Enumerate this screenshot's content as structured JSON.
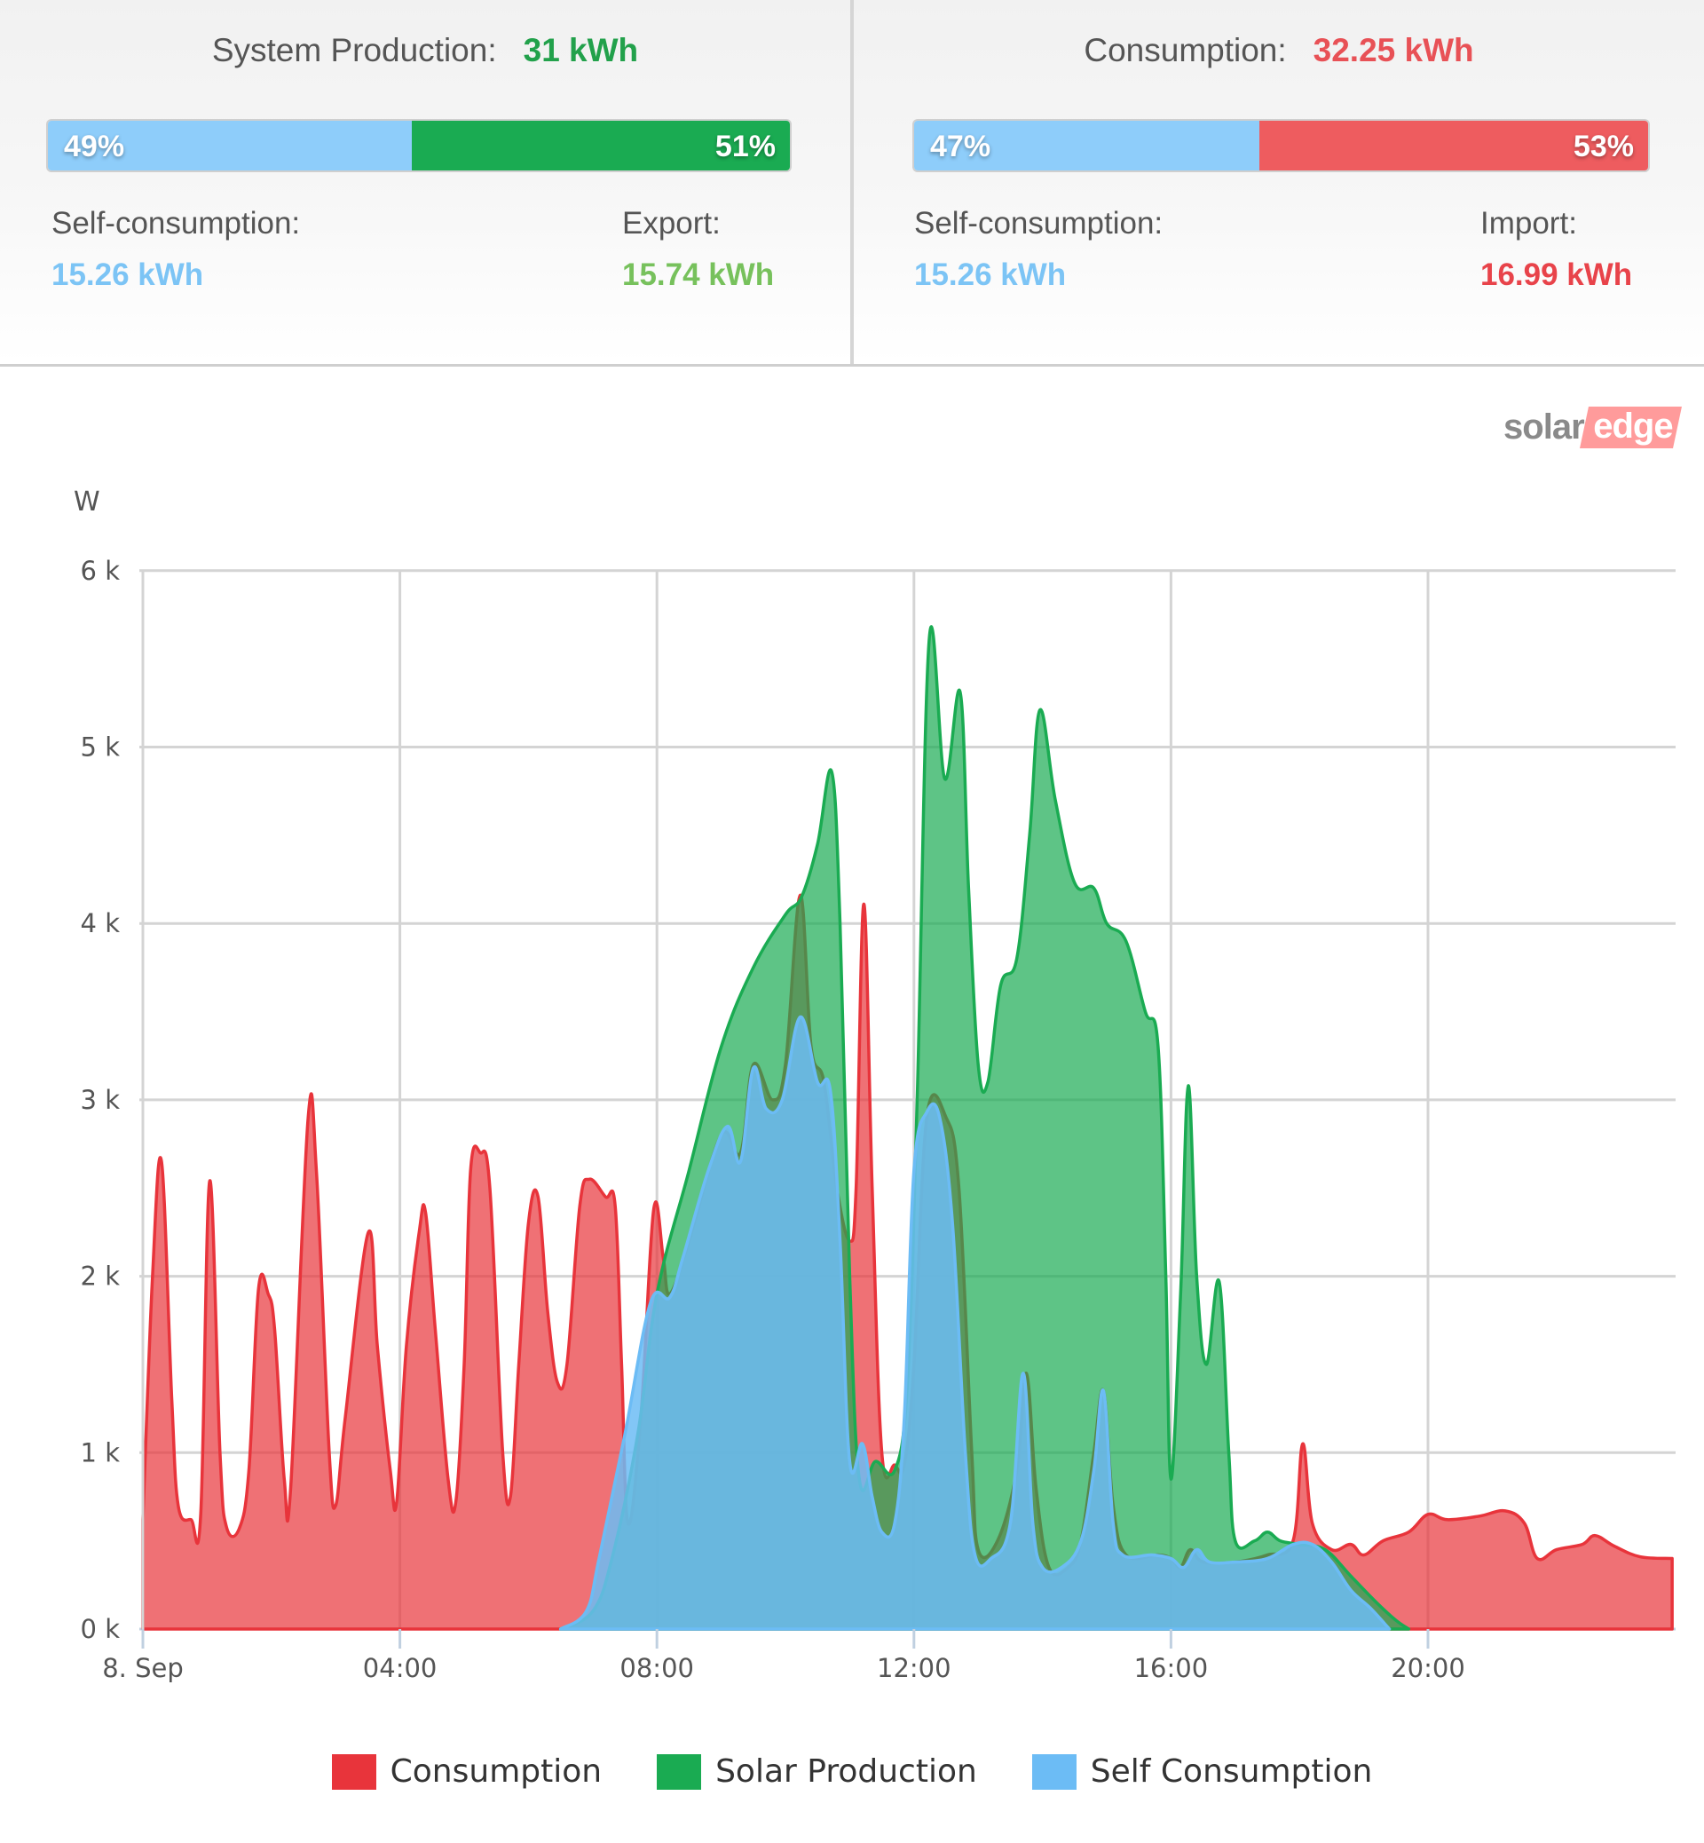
{
  "production": {
    "title": "System Production:",
    "total": "31 kWh",
    "total_color": "#22a14b",
    "bar": {
      "left_pct": 49,
      "left_label": "49%",
      "left_color": "#8ecdfa",
      "right_pct": 51,
      "right_label": "51%",
      "right_color": "#1aab52"
    },
    "left_stat": {
      "label": "Self-consumption:",
      "value": "15.26 kWh",
      "color": "#7cc4f5"
    },
    "right_stat": {
      "label": "Export:",
      "value": "15.74 kWh",
      "color": "#77c15c"
    }
  },
  "consumption": {
    "title": "Consumption:",
    "total": "32.25 kWh",
    "total_color": "#e85156",
    "bar": {
      "left_pct": 47,
      "left_label": "47%",
      "left_color": "#8ecdfa",
      "right_pct": 53,
      "right_label": "53%",
      "right_color": "#ee5c5f"
    },
    "left_stat": {
      "label": "Self-consumption:",
      "value": "15.26 kWh",
      "color": "#7cc4f5"
    },
    "right_stat": {
      "label": "Import:",
      "value": "16.99 kWh",
      "color": "#e8434a"
    }
  },
  "logo": {
    "part1": "solar",
    "part2": "edge"
  },
  "chart_data": {
    "type": "area",
    "title": "",
    "xlabel": "",
    "ylabel": "W",
    "xlim": [
      0,
      23.8
    ],
    "ylim": [
      0,
      6000
    ],
    "x_unit": "hour of day (8 Sep)",
    "y_ticks": [
      "0 k",
      "1 k",
      "2 k",
      "3 k",
      "4 k",
      "5 k",
      "6 k"
    ],
    "x_ticks": [
      {
        "hour": 0,
        "label": "8. Sep"
      },
      {
        "hour": 4,
        "label": "04:00"
      },
      {
        "hour": 8,
        "label": "08:00"
      },
      {
        "hour": 12,
        "label": "12:00"
      },
      {
        "hour": 16,
        "label": "16:00"
      },
      {
        "hour": 20,
        "label": "20:00"
      }
    ],
    "grid": true,
    "legend_position": "bottom",
    "series": [
      {
        "name": "Consumption",
        "color": "#e8343b",
        "fill": "rgba(232,52,59,0.70)",
        "points_kw": [
          [
            0.0,
            0.62
          ],
          [
            0.15,
            2.0
          ],
          [
            0.29,
            2.65
          ],
          [
            0.45,
            1.3
          ],
          [
            0.55,
            0.7
          ],
          [
            0.75,
            0.62
          ],
          [
            0.9,
            0.65
          ],
          [
            1.04,
            2.54
          ],
          [
            1.2,
            1.0
          ],
          [
            1.3,
            0.58
          ],
          [
            1.5,
            0.57
          ],
          [
            1.65,
            0.9
          ],
          [
            1.8,
            1.93
          ],
          [
            1.95,
            1.9
          ],
          [
            2.05,
            1.7
          ],
          [
            2.2,
            0.85
          ],
          [
            2.3,
            0.8
          ],
          [
            2.57,
            2.89
          ],
          [
            2.7,
            2.6
          ],
          [
            2.9,
            1.0
          ],
          [
            3.0,
            0.7
          ],
          [
            3.15,
            1.2
          ],
          [
            3.51,
            2.25
          ],
          [
            3.65,
            1.6
          ],
          [
            3.85,
            0.9
          ],
          [
            3.95,
            0.72
          ],
          [
            4.1,
            1.6
          ],
          [
            4.3,
            2.25
          ],
          [
            4.4,
            2.36
          ],
          [
            4.55,
            1.7
          ],
          [
            4.75,
            0.85
          ],
          [
            4.87,
            0.72
          ],
          [
            5.0,
            1.5
          ],
          [
            5.1,
            2.6
          ],
          [
            5.25,
            2.7
          ],
          [
            5.4,
            2.5
          ],
          [
            5.6,
            1.0
          ],
          [
            5.72,
            0.75
          ],
          [
            5.85,
            1.5
          ],
          [
            6.0,
            2.3
          ],
          [
            6.15,
            2.45
          ],
          [
            6.3,
            1.8
          ],
          [
            6.45,
            1.4
          ],
          [
            6.6,
            1.5
          ],
          [
            6.8,
            2.4
          ],
          [
            6.95,
            2.55
          ],
          [
            7.2,
            2.45
          ],
          [
            7.35,
            2.4
          ],
          [
            7.45,
            1.5
          ],
          [
            7.55,
            0.6
          ],
          [
            7.75,
            1.2
          ],
          [
            7.95,
            2.38
          ],
          [
            8.1,
            2.1
          ],
          [
            8.2,
            1.9
          ],
          [
            8.5,
            2.2
          ],
          [
            9.0,
            2.8
          ],
          [
            9.3,
            2.7
          ],
          [
            9.5,
            3.2
          ],
          [
            9.8,
            3.0
          ],
          [
            10.0,
            3.2
          ],
          [
            10.23,
            4.16
          ],
          [
            10.4,
            3.3
          ],
          [
            10.6,
            3.1
          ],
          [
            10.8,
            2.5
          ],
          [
            11.0,
            2.2
          ],
          [
            11.1,
            2.5
          ],
          [
            11.22,
            4.11
          ],
          [
            11.35,
            2.5
          ],
          [
            11.5,
            1.0
          ],
          [
            11.7,
            0.93
          ],
          [
            11.85,
            0.93
          ],
          [
            12.0,
            1.5
          ],
          [
            12.2,
            2.9
          ],
          [
            12.5,
            2.9
          ],
          [
            12.7,
            2.5
          ],
          [
            12.9,
            1.0
          ],
          [
            13.0,
            0.45
          ],
          [
            13.3,
            0.5
          ],
          [
            13.6,
            0.9
          ],
          [
            13.75,
            1.45
          ],
          [
            13.9,
            0.8
          ],
          [
            14.1,
            0.35
          ],
          [
            14.4,
            0.35
          ],
          [
            14.6,
            0.5
          ],
          [
            14.8,
            1.0
          ],
          [
            14.95,
            1.35
          ],
          [
            15.1,
            0.7
          ],
          [
            15.3,
            0.42
          ],
          [
            15.8,
            0.42
          ],
          [
            16.0,
            0.4
          ],
          [
            16.15,
            0.35
          ],
          [
            16.3,
            0.45
          ],
          [
            16.5,
            0.38
          ],
          [
            17.0,
            0.38
          ],
          [
            17.5,
            0.42
          ],
          [
            17.9,
            0.5
          ],
          [
            18.05,
            1.05
          ],
          [
            18.2,
            0.6
          ],
          [
            18.5,
            0.45
          ],
          [
            18.8,
            0.48
          ],
          [
            19.0,
            0.42
          ],
          [
            19.3,
            0.5
          ],
          [
            19.7,
            0.55
          ],
          [
            20.0,
            0.65
          ],
          [
            20.3,
            0.62
          ],
          [
            20.8,
            0.64
          ],
          [
            21.2,
            0.67
          ],
          [
            21.5,
            0.6
          ],
          [
            21.7,
            0.4
          ],
          [
            22.0,
            0.45
          ],
          [
            22.4,
            0.48
          ],
          [
            22.6,
            0.53
          ],
          [
            22.9,
            0.47
          ],
          [
            23.3,
            0.41
          ],
          [
            23.8,
            0.4
          ]
        ]
      },
      {
        "name": "Solar Production",
        "color": "#1aab52",
        "fill": "rgba(26,171,82,0.70)",
        "points_kw": [
          [
            6.5,
            0
          ],
          [
            7.0,
            0.1
          ],
          [
            7.3,
            0.4
          ],
          [
            7.7,
            1.1
          ],
          [
            8.0,
            1.9
          ],
          [
            8.5,
            2.6
          ],
          [
            9.0,
            3.3
          ],
          [
            9.5,
            3.75
          ],
          [
            10.0,
            4.05
          ],
          [
            10.25,
            4.15
          ],
          [
            10.5,
            4.45
          ],
          [
            10.72,
            4.86
          ],
          [
            10.85,
            4.0
          ],
          [
            11.0,
            2.0
          ],
          [
            11.15,
            0.85
          ],
          [
            11.4,
            0.95
          ],
          [
            11.7,
            0.9
          ],
          [
            11.9,
            1.4
          ],
          [
            12.05,
            3.0
          ],
          [
            12.24,
            5.62
          ],
          [
            12.48,
            4.82
          ],
          [
            12.72,
            5.31
          ],
          [
            12.85,
            4.2
          ],
          [
            13.0,
            3.2
          ],
          [
            13.15,
            3.1
          ],
          [
            13.35,
            3.65
          ],
          [
            13.6,
            3.8
          ],
          [
            13.8,
            4.5
          ],
          [
            13.96,
            5.21
          ],
          [
            14.2,
            4.7
          ],
          [
            14.5,
            4.23
          ],
          [
            14.8,
            4.2
          ],
          [
            15.0,
            4.0
          ],
          [
            15.3,
            3.9
          ],
          [
            15.6,
            3.5
          ],
          [
            15.8,
            3.3
          ],
          [
            15.92,
            2.0
          ],
          [
            16.0,
            0.85
          ],
          [
            16.15,
            1.9
          ],
          [
            16.27,
            3.08
          ],
          [
            16.4,
            2.0
          ],
          [
            16.55,
            1.5
          ],
          [
            16.75,
            1.97
          ],
          [
            16.9,
            1.0
          ],
          [
            17.0,
            0.5
          ],
          [
            17.3,
            0.5
          ],
          [
            17.5,
            0.55
          ],
          [
            17.7,
            0.5
          ],
          [
            18.0,
            0.48
          ],
          [
            18.4,
            0.45
          ],
          [
            18.8,
            0.3
          ],
          [
            19.2,
            0.15
          ],
          [
            19.5,
            0.05
          ],
          [
            19.7,
            0
          ]
        ]
      },
      {
        "name": "Self Consumption",
        "color": "#6cbcf5",
        "fill": "rgba(108,188,245,0.85)",
        "points_kw": [
          [
            6.5,
            0
          ],
          [
            6.9,
            0.1
          ],
          [
            7.1,
            0.4
          ],
          [
            7.5,
            1.1
          ],
          [
            7.9,
            1.85
          ],
          [
            8.2,
            1.88
          ],
          [
            8.4,
            2.1
          ],
          [
            8.8,
            2.6
          ],
          [
            9.1,
            2.85
          ],
          [
            9.3,
            2.65
          ],
          [
            9.5,
            3.18
          ],
          [
            9.7,
            2.95
          ],
          [
            9.95,
            3.0
          ],
          [
            10.23,
            3.47
          ],
          [
            10.5,
            3.1
          ],
          [
            10.7,
            3.05
          ],
          [
            10.85,
            2.2
          ],
          [
            11.0,
            0.95
          ],
          [
            11.2,
            1.05
          ],
          [
            11.35,
            0.75
          ],
          [
            11.5,
            0.55
          ],
          [
            11.7,
            0.6
          ],
          [
            11.85,
            1.2
          ],
          [
            12.0,
            2.6
          ],
          [
            12.2,
            2.93
          ],
          [
            12.4,
            2.9
          ],
          [
            12.6,
            2.3
          ],
          [
            12.8,
            1.0
          ],
          [
            12.95,
            0.42
          ],
          [
            13.2,
            0.4
          ],
          [
            13.5,
            0.6
          ],
          [
            13.7,
            1.45
          ],
          [
            13.85,
            0.6
          ],
          [
            14.0,
            0.35
          ],
          [
            14.3,
            0.35
          ],
          [
            14.6,
            0.5
          ],
          [
            14.8,
            0.9
          ],
          [
            14.95,
            1.35
          ],
          [
            15.1,
            0.6
          ],
          [
            15.25,
            0.42
          ],
          [
            15.7,
            0.42
          ],
          [
            16.0,
            0.4
          ],
          [
            16.2,
            0.35
          ],
          [
            16.4,
            0.45
          ],
          [
            16.6,
            0.38
          ],
          [
            17.0,
            0.38
          ],
          [
            17.5,
            0.4
          ],
          [
            17.9,
            0.48
          ],
          [
            18.2,
            0.48
          ],
          [
            18.5,
            0.38
          ],
          [
            18.8,
            0.22
          ],
          [
            19.1,
            0.12
          ],
          [
            19.4,
            0
          ]
        ]
      }
    ]
  },
  "legend": [
    {
      "label": "Consumption",
      "color": "#e8343b"
    },
    {
      "label": "Solar Production",
      "color": "#1aab52"
    },
    {
      "label": "Self Consumption",
      "color": "#6cbcf5"
    }
  ]
}
